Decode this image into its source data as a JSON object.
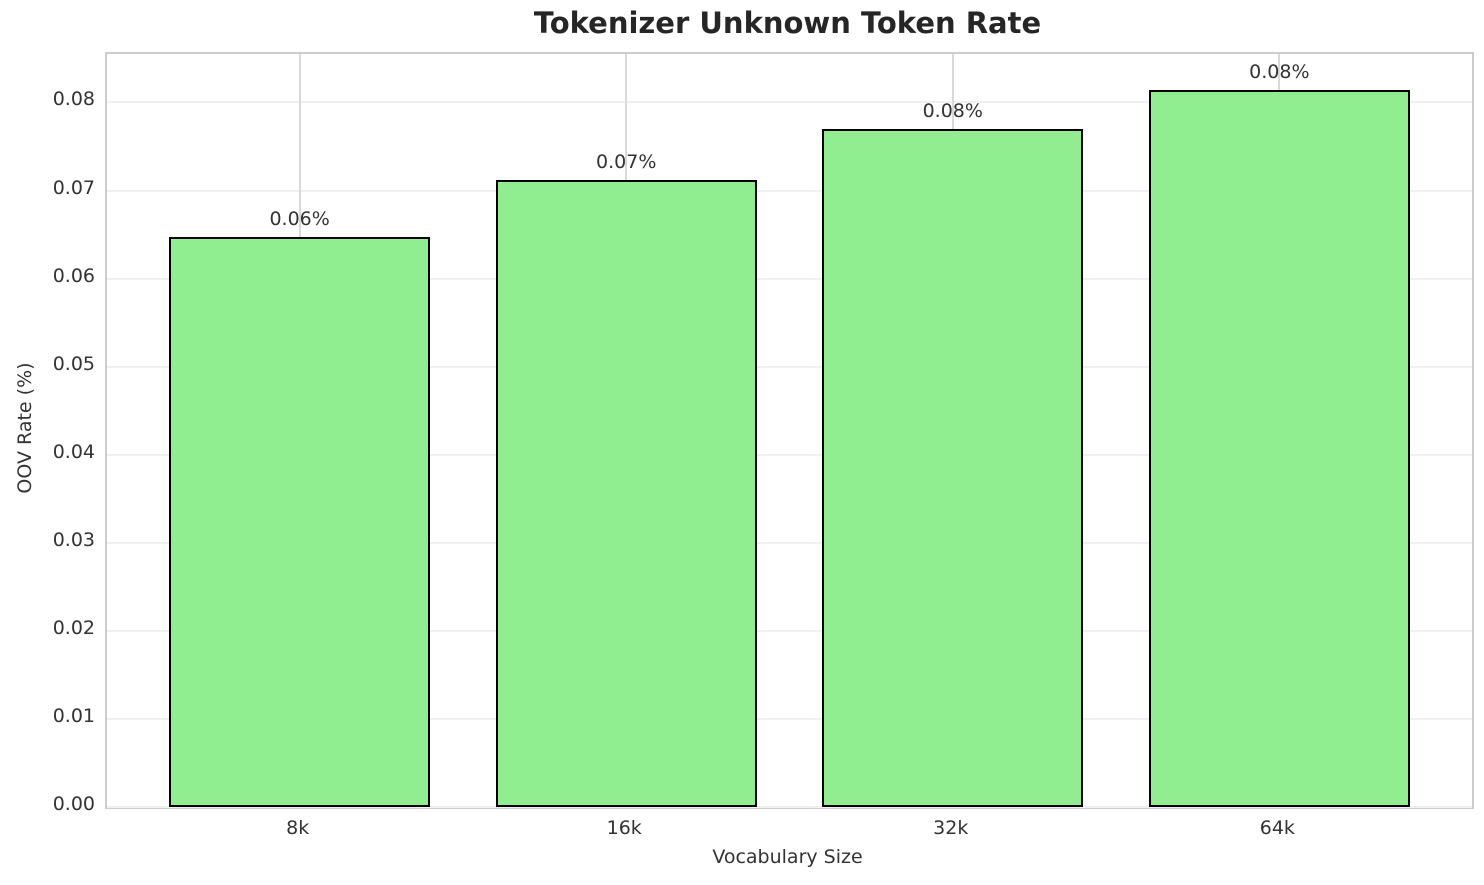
{
  "chart_data": {
    "type": "bar",
    "title": "Tokenizer Unknown Token Rate",
    "xlabel": "Vocabulary Size",
    "ylabel": "OOV Rate (%)",
    "categories": [
      "8k",
      "16k",
      "32k",
      "64k"
    ],
    "values": [
      0.0647,
      0.0712,
      0.077,
      0.0814
    ],
    "bar_labels": [
      "0.06%",
      "0.07%",
      "0.08%",
      "0.08%"
    ],
    "y_ticks": [
      0.0,
      0.01,
      0.02,
      0.03,
      0.04,
      0.05,
      0.06,
      0.07,
      0.08
    ],
    "y_tick_labels": [
      "0.00",
      "0.01",
      "0.02",
      "0.03",
      "0.04",
      "0.05",
      "0.06",
      "0.07",
      "0.08"
    ],
    "ylim": [
      0,
      0.0855
    ],
    "grid": true,
    "legend_position": "none",
    "colors": {
      "bar_fill": "#90EE90",
      "bar_edge": "#000000",
      "grid_horizontal": "#f0f0f0",
      "grid_vertical": "#d9d9d9",
      "spine": "#cccccc",
      "title_text": "#262626",
      "tick_text": "#333333",
      "background": "#ffffff"
    }
  }
}
